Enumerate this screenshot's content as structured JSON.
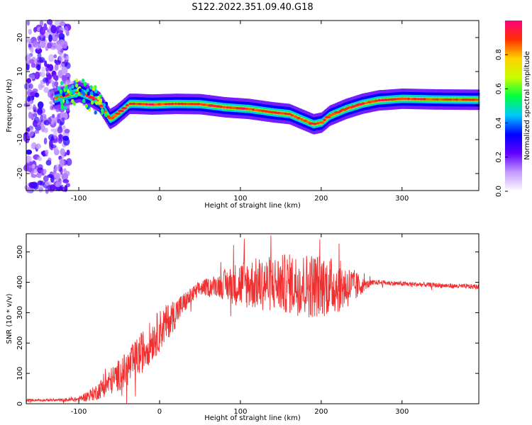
{
  "title": "S122.2022.351.09.40.G18",
  "chart_data": [
    {
      "type": "heatmap",
      "xlabel": "Height of straight line (km)",
      "ylabel": "Frequency (Hz)",
      "xlim": [
        -165,
        395
      ],
      "ylim": [
        -25,
        25
      ],
      "xticks": [
        -100,
        0,
        100,
        200,
        300
      ],
      "yticks": [
        -20,
        -10,
        0,
        10,
        20
      ],
      "grid": false,
      "ridge": {
        "x": [
          -160,
          -130,
          -115,
          -100,
          -85,
          -75,
          -62,
          -55,
          -45,
          -38,
          -30,
          -10,
          20,
          50,
          80,
          110,
          140,
          160,
          175,
          190,
          200,
          210,
          230,
          250,
          270,
          300,
          340,
          390
        ],
        "y": [
          2,
          2,
          3,
          4,
          2.5,
          1,
          -4,
          -3,
          -1,
          0.5,
          0.5,
          0.3,
          0.5,
          0.4,
          -0.5,
          -1,
          -2,
          -2.5,
          -4,
          -5.5,
          -5,
          -3,
          -1,
          0.5,
          1.5,
          2,
          1.8,
          1.7
        ]
      },
      "colorbar": {
        "label": "Normalized spectral amplitude",
        "range": [
          0,
          1
        ],
        "ticks": [
          0.0,
          0.2,
          0.4,
          0.6,
          0.8
        ],
        "tick_labels": [
          "0.0",
          "0.2",
          "0.4",
          "0.6",
          "0.8"
        ],
        "colormap": [
          "#ffffff",
          "#c49bff",
          "#6000ff",
          "#0000ff",
          "#00c8ff",
          "#00ff40",
          "#c8ff00",
          "#ffd200",
          "#ff3000",
          "#ff0080"
        ]
      }
    },
    {
      "type": "line",
      "xlabel": "Height of straight line (km)",
      "ylabel": "SNR (10 * v/v)",
      "xlim": [
        -165,
        395
      ],
      "ylim": [
        0,
        560
      ],
      "xticks": [
        -100,
        0,
        100,
        200,
        300
      ],
      "yticks": [
        0,
        100,
        200,
        300,
        400,
        500
      ],
      "grid": false,
      "series": [
        {
          "color": "#f03030",
          "x": [
            -165,
            -140,
            -120,
            -100,
            -80,
            -60,
            -40,
            -20,
            0,
            20,
            35,
            50,
            70,
            100,
            130,
            160,
            190,
            220,
            240,
            255,
            270,
            300,
            330,
            360,
            395
          ],
          "y": [
            12,
            12,
            12,
            15,
            35,
            75,
            115,
            175,
            240,
            300,
            345,
            380,
            390,
            395,
            395,
            395,
            390,
            388,
            385,
            392,
            400,
            395,
            392,
            388,
            385
          ],
          "spread": [
            4,
            4,
            5,
            8,
            25,
            45,
            60,
            70,
            70,
            50,
            30,
            25,
            35,
            80,
            90,
            100,
            110,
            90,
            60,
            15,
            8,
            8,
            8,
            8,
            8
          ]
        }
      ]
    }
  ]
}
